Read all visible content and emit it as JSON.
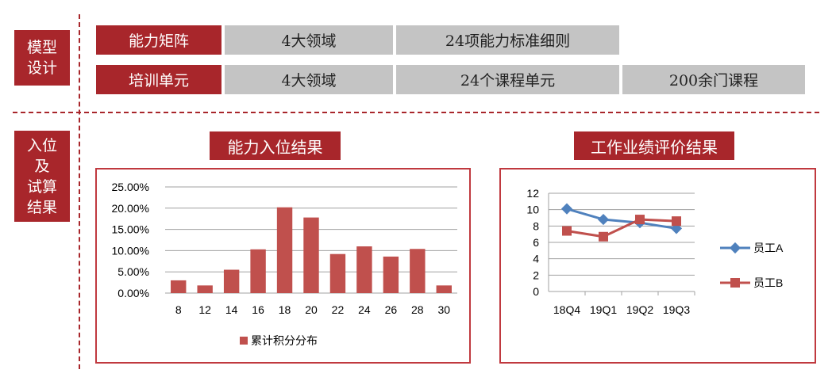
{
  "left_labels": {
    "model_design": "模型\n设计",
    "placement": "入位\n及\n试算\n结果"
  },
  "rows": [
    {
      "header": "能力矩阵",
      "cells": [
        "4大领域",
        "24项能力标准细则"
      ]
    },
    {
      "header": "培训单元",
      "cells": [
        "4大领域",
        "24个课程单元",
        "200余门课程"
      ]
    }
  ],
  "charts_titles": {
    "bar": "能力入位结果",
    "line": "工作业绩评价结果"
  },
  "colors": {
    "accent_red": "#a8262b",
    "bar_red": "#c0504d",
    "series_blue": "#4f81bd",
    "gray_cell": "#c4c4c4"
  },
  "chart_data": [
    {
      "type": "bar",
      "categories": [
        "8",
        "12",
        "14",
        "16",
        "18",
        "20",
        "22",
        "24",
        "26",
        "28",
        "30"
      ],
      "series": [
        {
          "name": "累计积分分布",
          "values": [
            0.03,
            0.018,
            0.055,
            0.103,
            0.202,
            0.178,
            0.092,
            0.11,
            0.086,
            0.104,
            0.018
          ]
        }
      ],
      "yticks": [
        "0.00%",
        "5.00%",
        "10.00%",
        "15.00%",
        "20.00%",
        "25.00%"
      ],
      "ylim": [
        0,
        0.25
      ],
      "grid": true,
      "legend": "bottom"
    },
    {
      "type": "line",
      "categories": [
        "18Q4",
        "19Q1",
        "19Q2",
        "19Q3"
      ],
      "series": [
        {
          "name": "员工A",
          "values": [
            10.1,
            8.8,
            8.4,
            7.7
          ]
        },
        {
          "name": "员工B",
          "values": [
            7.4,
            6.7,
            8.8,
            8.6
          ]
        }
      ],
      "yticks": [
        "0",
        "2",
        "4",
        "6",
        "8",
        "10",
        "12"
      ],
      "ylim": [
        0,
        12
      ],
      "grid": true,
      "legend": "right"
    }
  ]
}
